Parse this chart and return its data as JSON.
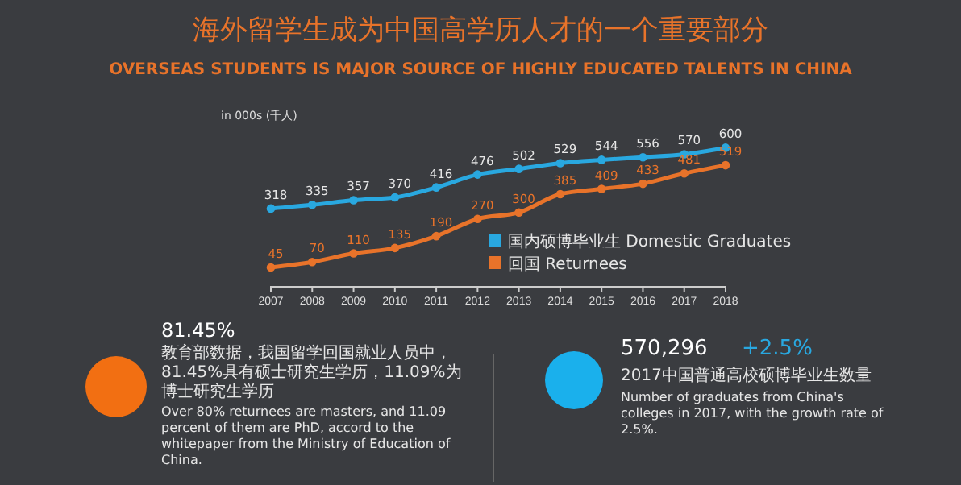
{
  "chart_data": {
    "type": "line",
    "title": "海外留学生成为中国高学历人才的一个重要部分",
    "subtitle": "OVERSEAS STUDENTS IS MAJOR SOURCE OF HIGHLY EDUCATED TALENTS IN CHINA",
    "ylabel": "in 000s (千人)",
    "categories": [
      "2007",
      "2008",
      "2009",
      "2010",
      "2011",
      "2012",
      "2013",
      "2014",
      "2015",
      "2016",
      "2017",
      "2018"
    ],
    "series": [
      {
        "name": "国内硕博毕业生 Domestic Graduates",
        "color": "#29a8e0",
        "values": [
          318,
          335,
          357,
          370,
          416,
          476,
          502,
          529,
          544,
          556,
          570,
          600
        ]
      },
      {
        "name": "回国 Returnees",
        "color": "#e8732a",
        "values": [
          45,
          70,
          110,
          135,
          190,
          270,
          300,
          385,
          409,
          433,
          481,
          519
        ]
      }
    ],
    "data_labels": true,
    "marker": "circle",
    "legend": "bottom right",
    "tick_labels": "x",
    "annotations": [
      "81.45%",
      "教育部数据，我国留学回国就业人员中，81.45%具有硕士研究生学历，11.09%为博士研究生学历",
      "Over 80% returnees are masters, and 11.09 percent of them are PhD, accord to the whitepaper from the Ministry of Education of China.",
      "570,296",
      "+2.5%",
      "2017中国普通高校硕博毕业生数量",
      "Number of graduates from China's colleges in 2017, with the growth rate of 2.5%."
    ]
  }
}
